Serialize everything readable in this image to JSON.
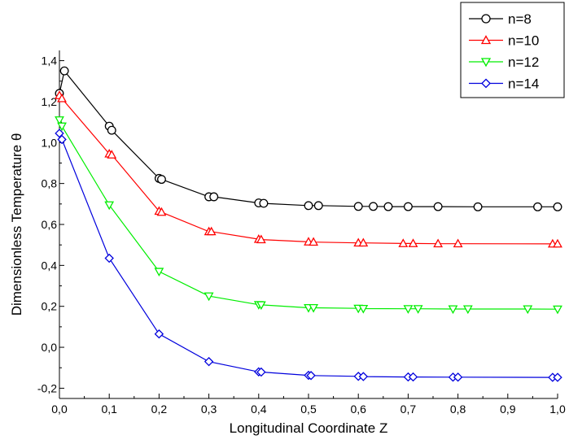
{
  "chart_data": {
    "type": "line",
    "xlabel": "Longitudinal Coordinate  Z",
    "ylabel": "Dimensionless Temperature θ",
    "xlim": [
      0.0,
      1.0
    ],
    "ylim": [
      -0.25,
      1.45
    ],
    "x_ticks": [
      0.0,
      0.1,
      0.2,
      0.3,
      0.4,
      0.5,
      0.6,
      0.7,
      0.8,
      0.9,
      1.0
    ],
    "x_tick_labels": [
      "0,0",
      "0,1",
      "0,2",
      "0,3",
      "0,4",
      "0,5",
      "0,6",
      "0,7",
      "0,8",
      "0,9",
      "1,0"
    ],
    "y_ticks": [
      -0.2,
      0.0,
      0.2,
      0.4,
      0.6,
      0.8,
      1.0,
      1.2,
      1.4
    ],
    "y_tick_labels": [
      "-0,2",
      "0,0",
      "0,2",
      "0,4",
      "0,6",
      "0,8",
      "1,0",
      "1,2",
      "1,4"
    ],
    "grid": false,
    "legend_position": "top-right",
    "series": [
      {
        "name": "n=8",
        "color": "#000000",
        "marker": "circle",
        "x": [
          0.0,
          0.01,
          0.1,
          0.105,
          0.2,
          0.205,
          0.3,
          0.31,
          0.4,
          0.41,
          0.5,
          0.52,
          0.6,
          0.63,
          0.66,
          0.7,
          0.76,
          0.84,
          0.96,
          1.0
        ],
        "y": [
          1.24,
          1.35,
          1.08,
          1.06,
          0.825,
          0.82,
          0.735,
          0.735,
          0.705,
          0.703,
          0.692,
          0.692,
          0.688,
          0.688,
          0.687,
          0.687,
          0.687,
          0.686,
          0.686,
          0.686
        ]
      },
      {
        "name": "n=10",
        "color": "#ff0000",
        "marker": "triangle-up",
        "x": [
          0.0,
          0.005,
          0.1,
          0.105,
          0.2,
          0.205,
          0.3,
          0.305,
          0.4,
          0.405,
          0.5,
          0.51,
          0.6,
          0.61,
          0.69,
          0.71,
          0.76,
          0.8,
          0.99,
          1.0
        ],
        "y": [
          1.23,
          1.215,
          0.945,
          0.94,
          0.665,
          0.66,
          0.565,
          0.565,
          0.528,
          0.526,
          0.515,
          0.514,
          0.51,
          0.51,
          0.507,
          0.507,
          0.506,
          0.506,
          0.505,
          0.505
        ]
      },
      {
        "name": "n=12",
        "color": "#00ee00",
        "marker": "triangle-down",
        "x": [
          0.0,
          0.005,
          0.1,
          0.2,
          0.3,
          0.4,
          0.405,
          0.5,
          0.51,
          0.6,
          0.61,
          0.7,
          0.72,
          0.79,
          0.82,
          0.94,
          1.0
        ],
        "y": [
          1.11,
          1.08,
          0.695,
          0.37,
          0.25,
          0.208,
          0.207,
          0.193,
          0.193,
          0.19,
          0.189,
          0.188,
          0.188,
          0.187,
          0.187,
          0.187,
          0.186
        ]
      },
      {
        "name": "n=14",
        "color": "#0000dd",
        "marker": "diamond",
        "x": [
          0.0,
          0.005,
          0.1,
          0.2,
          0.3,
          0.4,
          0.405,
          0.5,
          0.505,
          0.6,
          0.61,
          0.7,
          0.71,
          0.79,
          0.8,
          0.99,
          1.0
        ],
        "y": [
          1.045,
          1.015,
          0.435,
          0.065,
          -0.07,
          -0.12,
          -0.121,
          -0.137,
          -0.138,
          -0.142,
          -0.143,
          -0.145,
          -0.145,
          -0.146,
          -0.146,
          -0.147,
          -0.147
        ]
      }
    ]
  }
}
